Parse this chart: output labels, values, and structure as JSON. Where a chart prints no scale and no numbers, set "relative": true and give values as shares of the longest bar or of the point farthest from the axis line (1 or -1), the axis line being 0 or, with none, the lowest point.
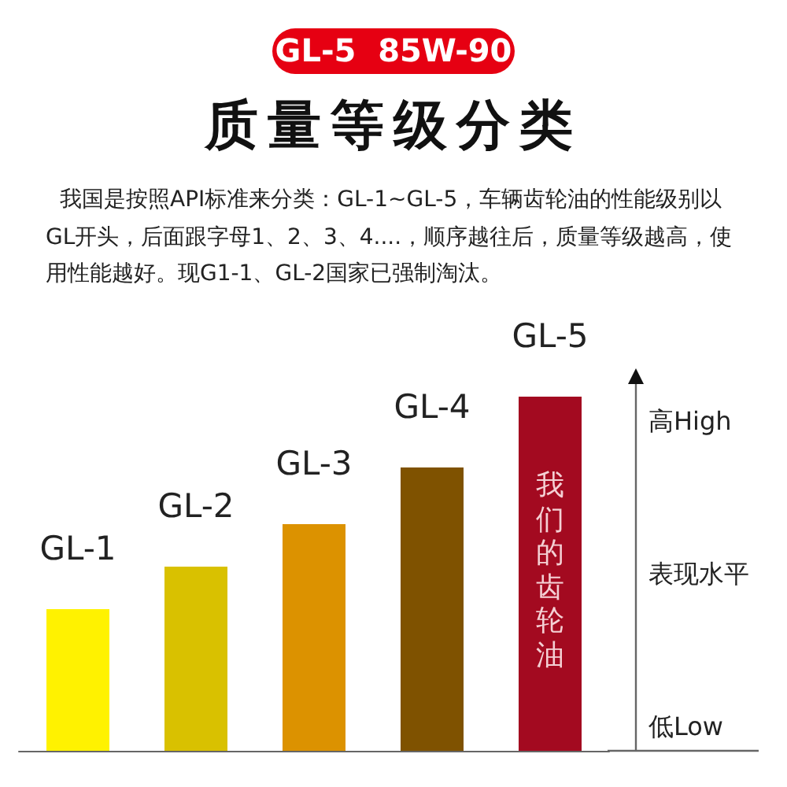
{
  "chart_data": {
    "type": "bar",
    "title": "质量等级分类",
    "subtitle": "我国是按照API标准来分类：GL-1~GL-5，车辆齿轮油的性能级别以GL开头，后面跟字母1、2、3、4....，顺序越往后，质量等级越高，使用性能越好。现G1-1、GL-2国家已强制淘汰。",
    "categories": [
      "GL-1",
      "GL-2",
      "GL-3",
      "GL-4",
      "GL-5"
    ],
    "values": [
      0.4,
      0.52,
      0.64,
      0.8,
      1
    ],
    "colors": [
      "#fff200",
      "#d9c100",
      "#dc9200",
      "#7f5200",
      "#a30a20"
    ],
    "relative": true,
    "annotations": [
      "GL-5  85W-90",
      "高High",
      "表现水平",
      "低Low",
      "我们的齿轮油"
    ]
  }
}
